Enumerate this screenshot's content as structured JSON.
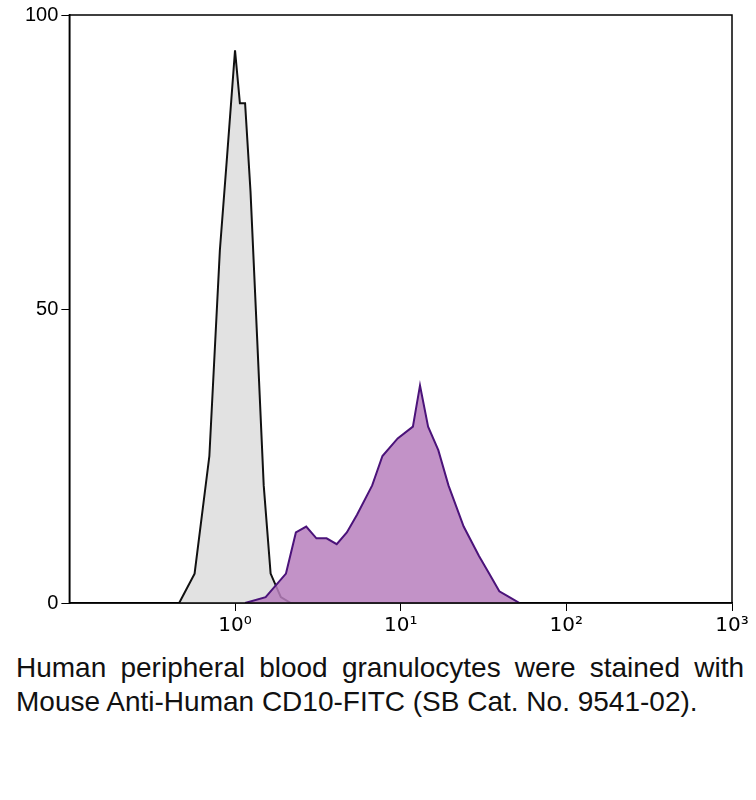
{
  "chart_data": {
    "type": "area",
    "caption": "Human peripheral blood granulocytes were stained with Mouse Anti-Human CD10-FITC (SB Cat. No. 9541-02).",
    "log": "x",
    "grid": false,
    "xlim": [
      0.1,
      1000
    ],
    "xticks": [
      {
        "value": 1,
        "label": "10⁰"
      },
      {
        "value": 10,
        "label": "10¹"
      },
      {
        "value": 100,
        "label": "10²"
      },
      {
        "value": 1000,
        "label": "10³"
      }
    ],
    "ylim": [
      0,
      100
    ],
    "yticks": [
      0,
      50,
      100
    ],
    "series": [
      {
        "color": "#e2e2e2",
        "x": [
          0.46,
          0.57,
          0.7,
          0.81,
          0.89,
          1.0,
          1.07,
          1.15,
          1.24,
          1.36,
          1.49,
          1.64,
          1.89,
          2.17
        ],
        "values": [
          0,
          5,
          25,
          60,
          75,
          94,
          85,
          85,
          70,
          45,
          20,
          5,
          1,
          0
        ]
      },
      {
        "color": "#b77fbd",
        "x": [
          1.15,
          1.53,
          2.03,
          2.33,
          2.69,
          3.1,
          3.57,
          4.11,
          4.73,
          5.45,
          6.73,
          7.76,
          9.59,
          11.85,
          13.08,
          14.64,
          16.87,
          19.43,
          24.0,
          29.7,
          34.2,
          39.4,
          45.3,
          52.2
        ],
        "values": [
          0,
          1,
          5,
          12,
          13,
          11,
          11,
          10,
          12,
          15,
          20,
          25,
          28,
          30,
          37,
          30,
          26,
          20,
          13,
          8,
          5,
          2,
          1,
          0
        ]
      }
    ]
  }
}
